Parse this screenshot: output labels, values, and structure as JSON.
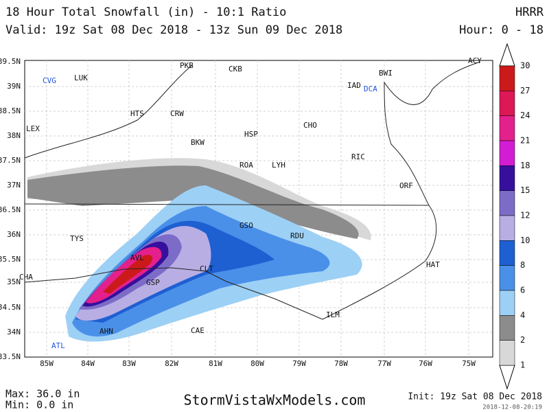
{
  "header": {
    "title": "18 Hour Total Snowfall (in) - 10:1 Ratio",
    "model": "HRRR",
    "valid": "Valid: 19z Sat 08 Dec 2018 - 13z Sun 09 Dec 2018",
    "hours": "Hour: 0 - 18"
  },
  "map": {
    "lat_labels": [
      "39.5N",
      "39N",
      "38.5N",
      "38N",
      "37.5N",
      "37N",
      "36.5N",
      "36N",
      "35.5N",
      "35N",
      "34.5N",
      "34N",
      "33.5N"
    ],
    "lon_labels": [
      "85W",
      "84W",
      "83W",
      "82W",
      "81W",
      "80W",
      "79W",
      "78W",
      "77W",
      "76W",
      "75W"
    ],
    "cities": [
      "LUK",
      "CVG",
      "PKB",
      "CKB",
      "BWI",
      "ACY",
      "IAD",
      "DCA",
      "HTS",
      "CRW",
      "LEX",
      "CHO",
      "HSP",
      "BKW",
      "RIC",
      "ROA",
      "LYH",
      "ORF",
      "GSO",
      "RDU",
      "TYS",
      "AVL",
      "HAT",
      "CLT",
      "CHA",
      "GSP",
      "ILM",
      "AHN",
      "CAE",
      "ATL"
    ]
  },
  "legend": {
    "labels": [
      30,
      27,
      24,
      21,
      18,
      15,
      12,
      10,
      8,
      6,
      4,
      2,
      1
    ],
    "colors": [
      "#cc1a1a",
      "#dc1857",
      "#e4208c",
      "#d21ed2",
      "#36109c",
      "#7c6cc8",
      "#b8aee4",
      "#1e5fd2",
      "#4a90e8",
      "#9dd0f5",
      "#8c8c8c",
      "#d8d8d8"
    ]
  },
  "footer": {
    "max": "Max: 36.0 in",
    "min": "Min: 0.0 in",
    "site": "StormVistaWxModels.com",
    "init": "Init: 19z Sat 08 Dec 2018",
    "stamp": "2018-12-08-20:19"
  }
}
